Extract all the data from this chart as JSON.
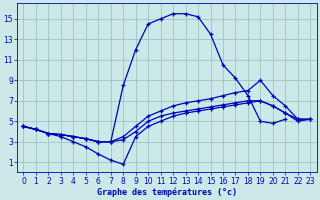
{
  "title": "Graphe des températures (°c)",
  "background_color": "#cce8e8",
  "grid_color": "#99bbbb",
  "line_color": "#0000bb",
  "xlim": [
    -0.5,
    23.5
  ],
  "ylim": [
    0,
    16.5
  ],
  "xticks": [
    0,
    1,
    2,
    3,
    4,
    5,
    6,
    7,
    8,
    9,
    10,
    11,
    12,
    13,
    14,
    15,
    16,
    17,
    18,
    19,
    20,
    21,
    22,
    23
  ],
  "yticks": [
    1,
    3,
    5,
    7,
    9,
    11,
    13,
    15
  ],
  "lines": [
    {
      "x": [
        0,
        1,
        2,
        3,
        4,
        5,
        6,
        7,
        8,
        9,
        10,
        11,
        12,
        13,
        14,
        15,
        16,
        17,
        18,
        19,
        20,
        21,
        22,
        23
      ],
      "y": [
        4.5,
        4.2,
        3.8,
        3.7,
        3.5,
        3.3,
        3.0,
        3.0,
        8.5,
        12.0,
        14.5,
        15.0,
        15.5,
        15.5,
        15.2,
        13.5,
        10.5,
        9.2,
        7.5,
        5.0,
        4.8,
        5.2,
        null,
        null
      ]
    },
    {
      "x": [
        0,
        1,
        2,
        3,
        4,
        5,
        6,
        7,
        8,
        9,
        10,
        11,
        12,
        13,
        14,
        15,
        16,
        17,
        18,
        19,
        20,
        21,
        22,
        23
      ],
      "y": [
        4.5,
        4.2,
        3.8,
        3.7,
        3.5,
        3.3,
        3.0,
        3.0,
        3.5,
        4.5,
        5.5,
        6.0,
        6.5,
        6.8,
        7.0,
        7.2,
        7.5,
        7.8,
        8.0,
        9.0,
        7.5,
        6.5,
        5.2,
        5.2
      ]
    },
    {
      "x": [
        0,
        1,
        2,
        3,
        4,
        5,
        6,
        7,
        8,
        9,
        10,
        11,
        12,
        13,
        14,
        15,
        16,
        17,
        18,
        19,
        20,
        21,
        22,
        23
      ],
      "y": [
        4.5,
        4.2,
        3.8,
        3.7,
        3.5,
        3.3,
        3.0,
        3.0,
        3.2,
        4.0,
        5.0,
        5.5,
        5.8,
        6.0,
        6.2,
        6.4,
        6.6,
        6.8,
        7.0,
        7.0,
        6.5,
        5.8,
        5.2,
        5.2
      ]
    },
    {
      "x": [
        0,
        1,
        2,
        3,
        4,
        5,
        6,
        7,
        8,
        9,
        10,
        11,
        12,
        13,
        14,
        15,
        16,
        17,
        18,
        19,
        20,
        21,
        22,
        23
      ],
      "y": [
        4.5,
        4.2,
        3.8,
        3.5,
        3.0,
        2.5,
        1.8,
        1.2,
        0.8,
        3.5,
        4.5,
        5.0,
        5.5,
        5.8,
        6.0,
        6.2,
        6.4,
        6.6,
        6.8,
        7.0,
        6.5,
        5.8,
        5.0,
        5.2
      ]
    }
  ]
}
